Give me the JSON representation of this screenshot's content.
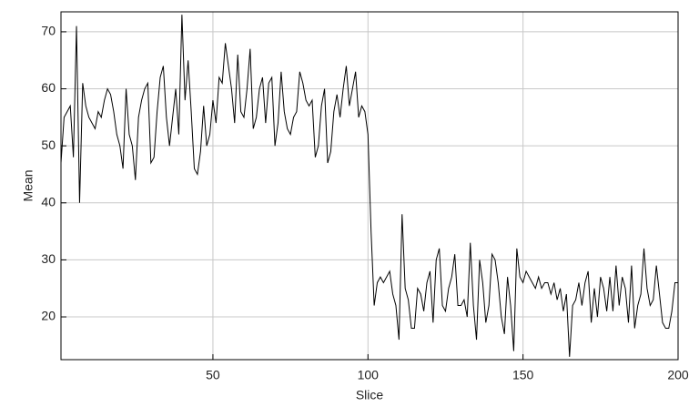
{
  "chart_data": {
    "type": "line",
    "x_label": "Slice",
    "y_label": "Mean",
    "x": [
      1,
      2,
      3,
      4,
      5,
      6,
      7,
      8,
      9,
      10,
      11,
      12,
      13,
      14,
      15,
      16,
      17,
      18,
      19,
      20,
      21,
      22,
      23,
      24,
      25,
      26,
      27,
      28,
      29,
      30,
      31,
      32,
      33,
      34,
      35,
      36,
      37,
      38,
      39,
      40,
      41,
      42,
      43,
      44,
      45,
      46,
      47,
      48,
      49,
      50,
      51,
      52,
      53,
      54,
      55,
      56,
      57,
      58,
      59,
      60,
      61,
      62,
      63,
      64,
      65,
      66,
      67,
      68,
      69,
      70,
      71,
      72,
      73,
      74,
      75,
      76,
      77,
      78,
      79,
      80,
      81,
      82,
      83,
      84,
      85,
      86,
      87,
      88,
      89,
      90,
      91,
      92,
      93,
      94,
      95,
      96,
      97,
      98,
      99,
      100,
      101,
      102,
      103,
      104,
      105,
      106,
      107,
      108,
      109,
      110,
      111,
      112,
      113,
      114,
      115,
      116,
      117,
      118,
      119,
      120,
      121,
      122,
      123,
      124,
      125,
      126,
      127,
      128,
      129,
      130,
      131,
      132,
      133,
      134,
      135,
      136,
      137,
      138,
      139,
      140,
      141,
      142,
      143,
      144,
      145,
      146,
      147,
      148,
      149,
      150,
      151,
      152,
      153,
      154,
      155,
      156,
      157,
      158,
      159,
      160,
      161,
      162,
      163,
      164,
      165,
      166,
      167,
      168,
      169,
      170,
      171,
      172,
      173,
      174,
      175,
      176,
      177,
      178,
      179,
      180,
      181,
      182,
      183,
      184,
      185,
      186,
      187,
      188,
      189,
      190,
      191,
      192,
      193,
      194,
      195,
      196,
      197,
      198,
      199,
      200
    ],
    "values": [
      47,
      55,
      56,
      57,
      48,
      71,
      40,
      61,
      57,
      55,
      54,
      53,
      56,
      55,
      58,
      60,
      59,
      56,
      52,
      50,
      46,
      60,
      52,
      50,
      44,
      55,
      58,
      60,
      61,
      47,
      48,
      56,
      62,
      64,
      55,
      50,
      55,
      60,
      52,
      73,
      58,
      65,
      56,
      46,
      45,
      49,
      57,
      50,
      52,
      58,
      54,
      62,
      61,
      68,
      64,
      60,
      54,
      66,
      56,
      55,
      60,
      67,
      53,
      55,
      60,
      62,
      54,
      61,
      62,
      50,
      54,
      63,
      56,
      53,
      52,
      55,
      56,
      63,
      61,
      58,
      57,
      58,
      48,
      50,
      57,
      60,
      47,
      49,
      56,
      59,
      55,
      60,
      64,
      57,
      60,
      63,
      55,
      57,
      56,
      52,
      35,
      22,
      26,
      27,
      26,
      27,
      28,
      24,
      22,
      16,
      38,
      25,
      23,
      18,
      18,
      25,
      24,
      21,
      26,
      28,
      19,
      30,
      32,
      22,
      21,
      25,
      27,
      31,
      22,
      22,
      23,
      20,
      33,
      22,
      16,
      30,
      26,
      19,
      22,
      31,
      30,
      26,
      20,
      17,
      27,
      22,
      14,
      32,
      27,
      26,
      28,
      27,
      26,
      25,
      27,
      25,
      26,
      26,
      24,
      26,
      23,
      25,
      21,
      24,
      13,
      22,
      23,
      26,
      22,
      26,
      28,
      19,
      25,
      20,
      27,
      25,
      21,
      27,
      21,
      29,
      22,
      27,
      25,
      19,
      29,
      18,
      22,
      24,
      32,
      25,
      22,
      23,
      29,
      24,
      19,
      18,
      18,
      21,
      26,
      26
    ],
    "color": "#000000",
    "xlim": [
      1,
      200
    ],
    "ylim": [
      12.5,
      73.5
    ],
    "xticks": [
      50,
      100,
      150,
      200
    ],
    "yticks": [
      20,
      30,
      40,
      50,
      60,
      70
    ],
    "grid": true
  }
}
